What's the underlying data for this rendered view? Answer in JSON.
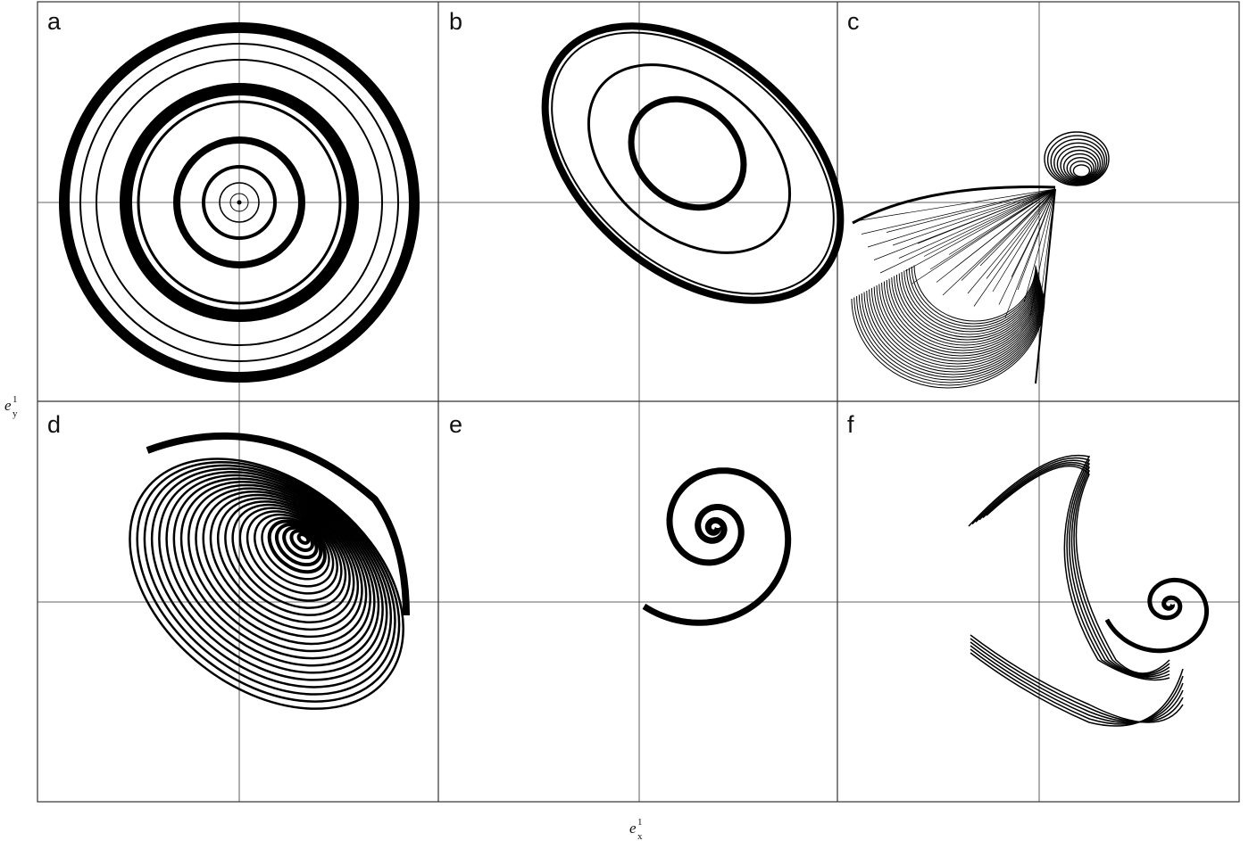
{
  "panels": [
    {
      "label": "a"
    },
    {
      "label": "b"
    },
    {
      "label": "c"
    },
    {
      "label": "d"
    },
    {
      "label": "e"
    },
    {
      "label": "f"
    }
  ],
  "y_axis_label": {
    "base": "e",
    "sup": "1",
    "sub": "y"
  },
  "x_axis_label": {
    "base": "e",
    "sup": "1",
    "sub": "x"
  }
}
